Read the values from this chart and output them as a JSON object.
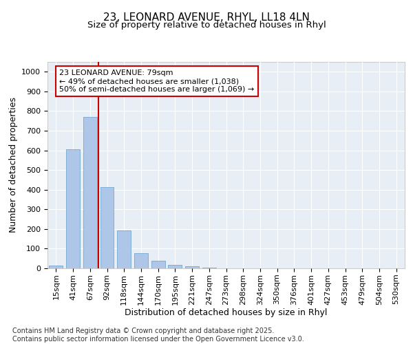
{
  "title_line1": "23, LEONARD AVENUE, RHYL, LL18 4LN",
  "title_line2": "Size of property relative to detached houses in Rhyl",
  "xlabel": "Distribution of detached houses by size in Rhyl",
  "ylabel": "Number of detached properties",
  "categories": [
    "15sqm",
    "41sqm",
    "67sqm",
    "92sqm",
    "118sqm",
    "144sqm",
    "170sqm",
    "195sqm",
    "221sqm",
    "247sqm",
    "273sqm",
    "298sqm",
    "324sqm",
    "350sqm",
    "376sqm",
    "401sqm",
    "427sqm",
    "453sqm",
    "479sqm",
    "504sqm",
    "530sqm"
  ],
  "values": [
    15,
    605,
    770,
    413,
    193,
    78,
    40,
    18,
    10,
    5,
    0,
    0,
    0,
    0,
    0,
    0,
    0,
    0,
    0,
    0,
    0
  ],
  "bar_color": "#aec6e8",
  "bar_edgecolor": "#7aadd4",
  "background_color": "#e8eef5",
  "grid_color": "#ffffff",
  "annotation_text": "23 LEONARD AVENUE: 79sqm\n← 49% of detached houses are smaller (1,038)\n50% of semi-detached houses are larger (1,069) →",
  "annotation_box_color": "#ffffff",
  "annotation_box_edgecolor": "#cc0000",
  "vline_color": "#cc0000",
  "vline_x": 2.5,
  "ylim": [
    0,
    1050
  ],
  "yticks": [
    0,
    100,
    200,
    300,
    400,
    500,
    600,
    700,
    800,
    900,
    1000
  ],
  "footnote": "Contains HM Land Registry data © Crown copyright and database right 2025.\nContains public sector information licensed under the Open Government Licence v3.0.",
  "title_fontsize": 11,
  "subtitle_fontsize": 9.5,
  "axis_label_fontsize": 9,
  "tick_fontsize": 8,
  "annotation_fontsize": 8,
  "footnote_fontsize": 7
}
